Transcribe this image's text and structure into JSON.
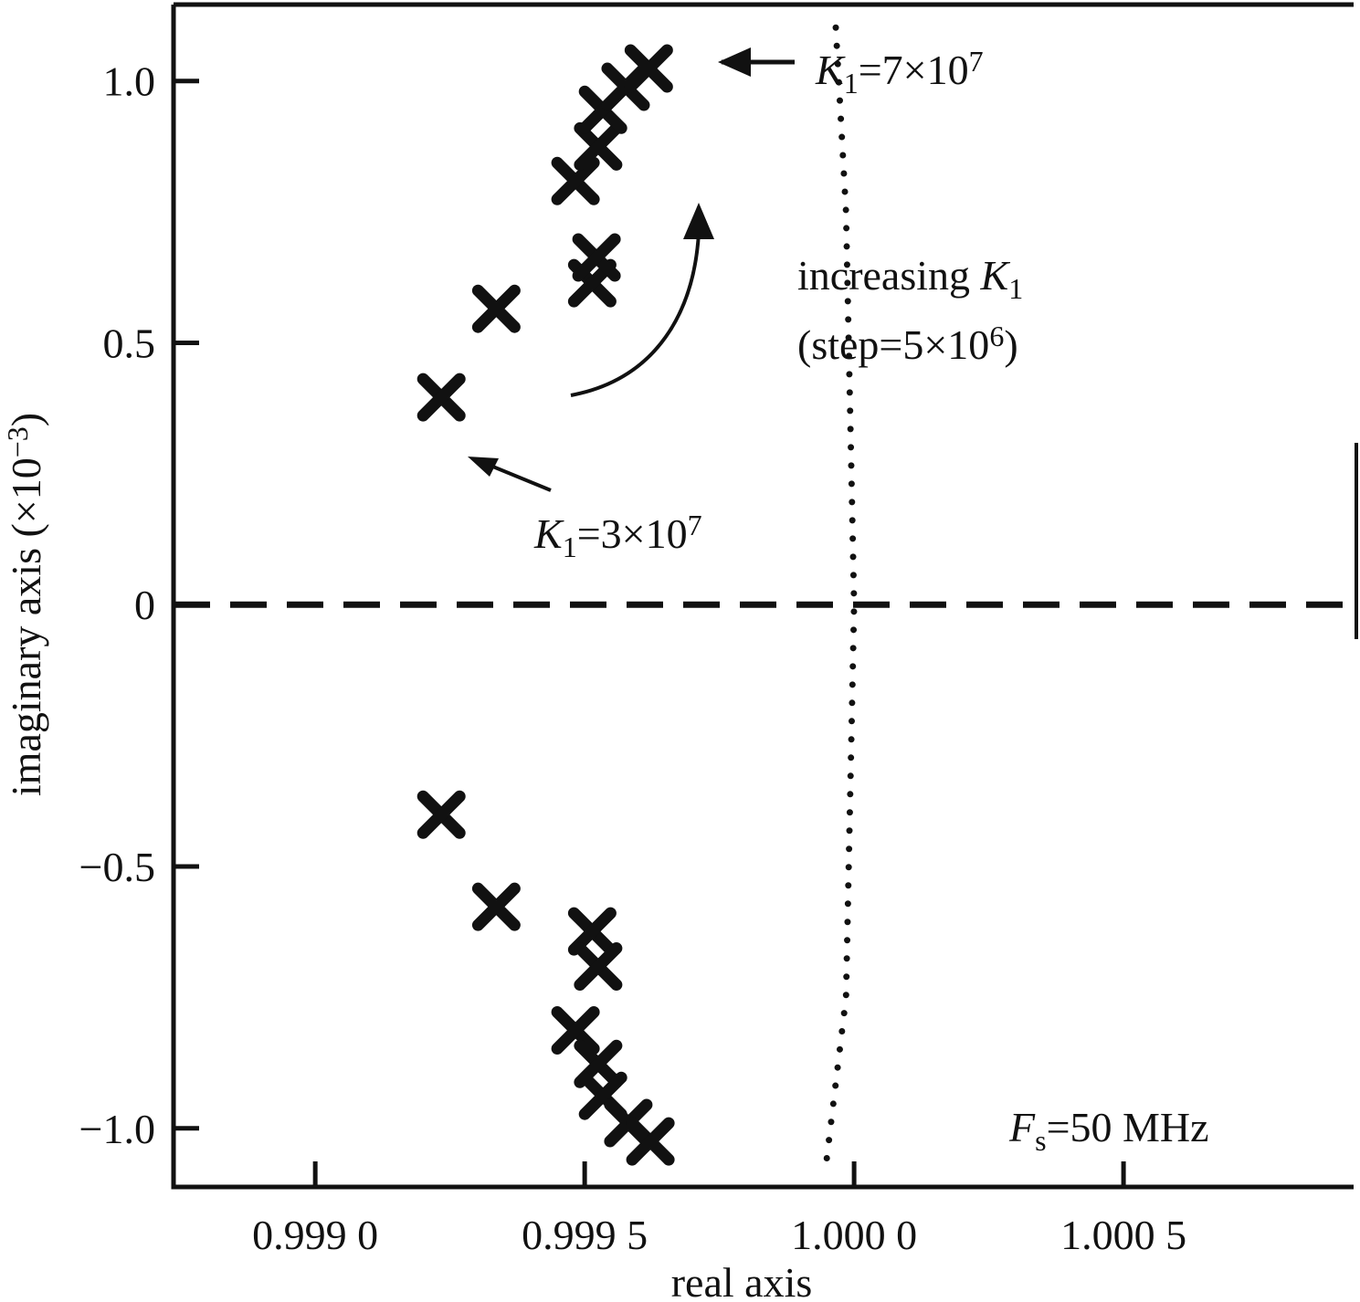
{
  "chart_data": {
    "type": "scatter",
    "xlabel": "real axis",
    "ylabel": [
      {
        "t": "imaginary axis (×10"
      },
      {
        "t": "−3",
        "style": "sup"
      },
      {
        "t": ")"
      }
    ],
    "xlim": [
      0.998737,
      1.000927
    ],
    "ylim": [
      -1.112,
      1.146
    ],
    "xticks": [
      {
        "value": 0.999,
        "label": "0.999 0"
      },
      {
        "value": 0.9995,
        "label": "0.999 5"
      },
      {
        "value": 1.0,
        "label": "1.000 0"
      },
      {
        "value": 1.0005,
        "label": "1.000 5"
      }
    ],
    "yticks": [
      {
        "value": -1.0,
        "label": "−1.0"
      },
      {
        "value": -0.5,
        "label": "−0.5"
      },
      0,
      0.5,
      {
        "value": 1.0,
        "label": "1.0"
      }
    ],
    "color": "#111111",
    "series": [
      {
        "x": [
          0.999234,
          0.999336,
          0.999514,
          0.999522,
          0.999483,
          0.999525,
          0.999534,
          0.999576,
          0.999619
        ],
        "y": [
          0.396,
          0.565,
          0.614,
          0.663,
          0.809,
          0.875,
          0.945,
          0.989,
          1.024
        ]
      },
      {
        "x": [
          0.999234,
          0.999336,
          0.999514,
          0.999525,
          0.999483,
          0.999525,
          0.999534,
          0.999581,
          0.999622
        ],
        "y": [
          -0.401,
          -0.577,
          -0.624,
          -0.691,
          -0.813,
          -0.877,
          -0.938,
          -0.99,
          -1.025
        ]
      }
    ],
    "reference_curve": {
      "x": [
        0.999966,
        0.999985,
        1.0,
        0.999985,
        0.999949
      ],
      "y": [
        1.102,
        0.75,
        0,
        -0.75,
        -1.06
      ],
      "style": "dotted"
    },
    "reference_hline": {
      "y": 0,
      "style": "dashed"
    },
    "annotations": [
      [
        {
          "t": "K",
          "style": "italic"
        },
        {
          "t": "1",
          "style": "sub"
        },
        {
          "t": "=7×10"
        },
        {
          "t": "7",
          "style": "sup"
        }
      ],
      [
        {
          "t": "increasing "
        },
        {
          "t": "K",
          "style": "italic"
        },
        {
          "t": "1",
          "style": "sub"
        }
      ],
      [
        {
          "t": "(step=5×10"
        },
        {
          "t": "6",
          "style": "sup"
        },
        {
          "t": ")"
        }
      ],
      [
        {
          "t": "K",
          "style": "italic"
        },
        {
          "t": "1",
          "style": "sub"
        },
        {
          "t": "=3×10"
        },
        {
          "t": "7",
          "style": "sup"
        }
      ],
      [
        {
          "t": "F",
          "style": "italic"
        },
        {
          "t": "s",
          "style": "sub"
        },
        {
          "t": "=50 MHz"
        }
      ]
    ]
  }
}
